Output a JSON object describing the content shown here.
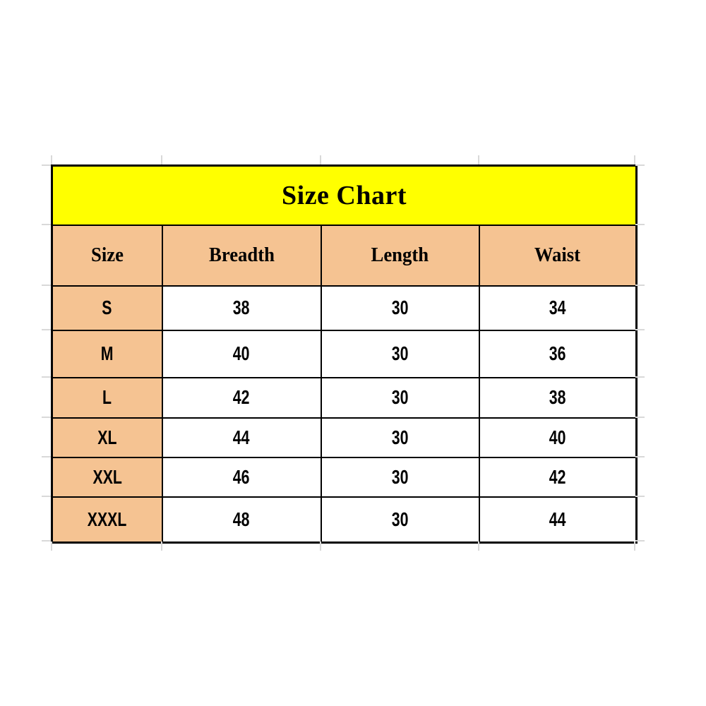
{
  "chart_data": {
    "type": "table",
    "title": "Size Chart",
    "columns": [
      "Size",
      "Breadth",
      "Length",
      "Waist"
    ],
    "rows": [
      [
        "S",
        "38",
        "30",
        "34"
      ],
      [
        "M",
        "40",
        "30",
        "36"
      ],
      [
        "L",
        "42",
        "30",
        "38"
      ],
      [
        "XL",
        "44",
        "30",
        "40"
      ],
      [
        "XXL",
        "46",
        "30",
        "42"
      ],
      [
        "XXXL",
        "48",
        "30",
        "44"
      ]
    ]
  },
  "colors": {
    "page_bg": "#FFFFFF",
    "title_bg": "#FFFF00",
    "header_bg": "#F5C392",
    "size_col_bg": "#F5C392",
    "cell_bg": "#FFFFFF",
    "border": "#000000",
    "text": "#000000",
    "gridline_stub": "#D9D9D9"
  }
}
